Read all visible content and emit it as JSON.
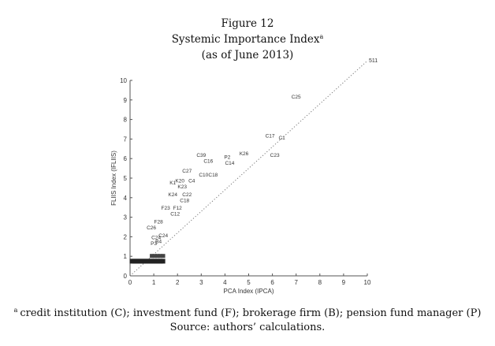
{
  "figure": {
    "number": "Figure 12",
    "title": "Systemic Importance Index",
    "title_marker": "a",
    "date": "(as of  June 2013)",
    "footnote_marker": "a",
    "footnote": "credit institution (C); investment fund (F); brokerage firm (B); pension fund manager (P)",
    "source": "Source: authors’ calculations."
  },
  "chart_data": {
    "type": "scatter",
    "xlabel": "PCA Index (IPCA)",
    "ylabel": "FLIIS Index (IFLIIS)",
    "xlim": [
      0,
      10
    ],
    "ylim": [
      0,
      10
    ],
    "xticks": [
      "0",
      "1",
      "2",
      "3",
      "4",
      "5",
      "6",
      "7",
      "8",
      "9",
      "10"
    ],
    "yticks": [
      "0",
      "1",
      "2",
      "3",
      "4",
      "5",
      "6",
      "7",
      "8",
      "9",
      "10"
    ],
    "grid": false,
    "reference_line": {
      "style": "dotted",
      "from": [
        0,
        0
      ],
      "to": [
        10,
        11
      ],
      "label": "511"
    },
    "points": [
      {
        "label": "C25",
        "x": 7.0,
        "y": 9.2
      },
      {
        "label": "C17",
        "x": 5.9,
        "y": 7.2
      },
      {
        "label": "C1",
        "x": 6.4,
        "y": 7.1
      },
      {
        "label": "K26",
        "x": 4.8,
        "y": 6.3
      },
      {
        "label": "C23",
        "x": 6.1,
        "y": 6.2
      },
      {
        "label": "C39",
        "x": 3.0,
        "y": 6.2
      },
      {
        "label": "C16",
        "x": 3.3,
        "y": 5.9
      },
      {
        "label": "P2",
        "x": 4.1,
        "y": 6.1
      },
      {
        "label": "C14",
        "x": 4.2,
        "y": 5.8
      },
      {
        "label": "C27",
        "x": 2.4,
        "y": 5.4
      },
      {
        "label": "C10",
        "x": 3.1,
        "y": 5.2
      },
      {
        "label": "C18",
        "x": 3.5,
        "y": 5.2
      },
      {
        "label": "K20",
        "x": 2.1,
        "y": 4.9
      },
      {
        "label": "K1",
        "x": 1.8,
        "y": 4.8
      },
      {
        "label": "C4",
        "x": 2.6,
        "y": 4.9
      },
      {
        "label": "K23",
        "x": 2.2,
        "y": 4.6
      },
      {
        "label": "K24",
        "x": 1.8,
        "y": 4.2
      },
      {
        "label": "C22",
        "x": 2.4,
        "y": 4.2
      },
      {
        "label": "C18",
        "x": 2.3,
        "y": 3.9
      },
      {
        "label": "F23",
        "x": 1.5,
        "y": 3.5
      },
      {
        "label": "F12",
        "x": 2.0,
        "y": 3.5
      },
      {
        "label": "C12",
        "x": 1.9,
        "y": 3.2
      },
      {
        "label": "F28",
        "x": 1.2,
        "y": 2.8
      },
      {
        "label": "C26",
        "x": 0.9,
        "y": 2.5
      },
      {
        "label": "C24",
        "x": 1.4,
        "y": 2.1
      },
      {
        "label": "B4",
        "x": 1.2,
        "y": 1.8
      },
      {
        "label": "P3",
        "x": 1.0,
        "y": 1.7
      },
      {
        "label": "C24",
        "x": 1.1,
        "y": 2.0
      }
    ]
  }
}
